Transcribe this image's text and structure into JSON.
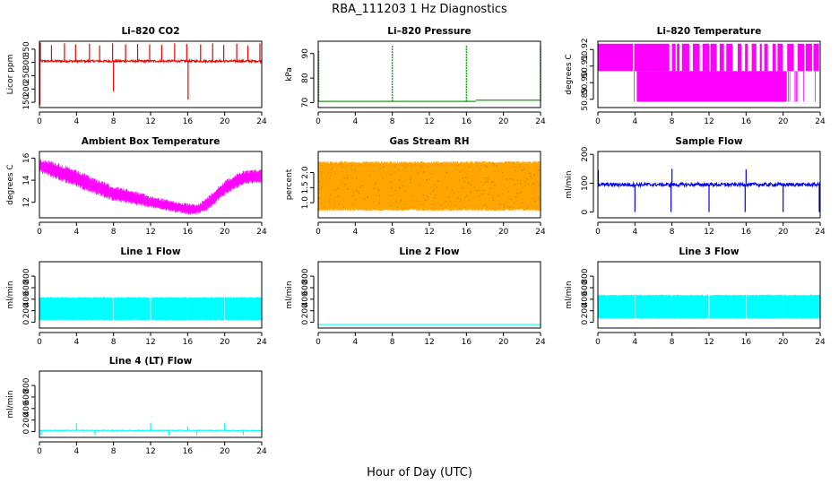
{
  "figure": {
    "title": "RBA_111203  1 Hz Diagnostics",
    "xlabel": "Hour of Day (UTC)"
  },
  "chart_data": [
    {
      "id": "p1",
      "type": "line",
      "title": "Li–820 CO2",
      "ylabel": "Licor ppm",
      "color": "#ee0000",
      "xlim": [
        0,
        24
      ],
      "ylim": [
        130,
        380
      ],
      "xticks": [
        0,
        4,
        8,
        12,
        16,
        20,
        24
      ],
      "yticks": [
        150,
        200,
        250,
        300,
        350
      ],
      "ytick_labels": [
        "150",
        "200",
        "250",
        "300",
        "350"
      ],
      "series": [
        {
          "baseline": 305,
          "noise": 4,
          "spikes": [
            {
              "x": 0.05,
              "y": 140
            },
            {
              "x": 0.1,
              "y": 375
            },
            {
              "x": 1.3,
              "y": 365
            },
            {
              "x": 2.7,
              "y": 372
            },
            {
              "x": 3.9,
              "y": 368
            },
            {
              "x": 5.4,
              "y": 370
            },
            {
              "x": 6.5,
              "y": 364
            },
            {
              "x": 7.9,
              "y": 372
            },
            {
              "x": 8.0,
              "y": 190
            },
            {
              "x": 9.3,
              "y": 368
            },
            {
              "x": 10.6,
              "y": 370
            },
            {
              "x": 11.9,
              "y": 368
            },
            {
              "x": 13.2,
              "y": 366
            },
            {
              "x": 14.6,
              "y": 372
            },
            {
              "x": 15.9,
              "y": 370
            },
            {
              "x": 16.05,
              "y": 160
            },
            {
              "x": 17.4,
              "y": 368
            },
            {
              "x": 18.7,
              "y": 372
            },
            {
              "x": 19.9,
              "y": 366
            },
            {
              "x": 21.3,
              "y": 370
            },
            {
              "x": 22.5,
              "y": 364
            },
            {
              "x": 23.8,
              "y": 372
            }
          ]
        }
      ]
    },
    {
      "id": "p2",
      "type": "line",
      "title": "Li–820 Pressure",
      "ylabel": "kPa",
      "color": "#00aa00",
      "xlim": [
        0,
        24
      ],
      "ylim": [
        68,
        95
      ],
      "xticks": [
        0,
        4,
        8,
        12,
        16,
        20,
        24
      ],
      "yticks": [
        70,
        80,
        90
      ],
      "ytick_labels": [
        "70",
        "80",
        "90"
      ],
      "series": [
        {
          "segments": [
            {
              "x0": 0,
              "x1": 17,
              "y": 70.5
            },
            {
              "x0": 17,
              "x1": 24,
              "y": 71.0
            }
          ],
          "spikes": [
            {
              "x": 0.05,
              "y": 91
            },
            {
              "x": 8.0,
              "y": 93.5
            },
            {
              "x": 16.0,
              "y": 93.5
            },
            {
              "x": 24.0,
              "y": 93.5
            }
          ]
        }
      ]
    },
    {
      "id": "p3",
      "type": "area",
      "title": "Li–820 Temperature",
      "ylabel": "degrees C",
      "color": "#ff00ff",
      "xlim": [
        0,
        24
      ],
      "ylim": [
        50.885,
        50.925
      ],
      "xticks": [
        0,
        4,
        8,
        12,
        16,
        20,
        24
      ],
      "yticks": [
        50.89,
        50.9,
        50.91,
        50.92
      ],
      "ytick_labels": [
        "50.89",
        "50.90",
        "50.91",
        "50.92"
      ],
      "series": [
        {
          "low": 50.8885,
          "high": 50.9235,
          "mid": 50.907
        }
      ]
    },
    {
      "id": "p4",
      "type": "area",
      "title": "Ambient Box Temperature",
      "ylabel": "degrees C",
      "color": "#ff00ff",
      "xlim": [
        0,
        24
      ],
      "ylim": [
        10.6,
        16.6
      ],
      "xticks": [
        0,
        4,
        8,
        12,
        16,
        20,
        24
      ],
      "yticks": [
        12,
        14,
        16
      ],
      "ytick_labels": [
        "12",
        "14",
        "16"
      ],
      "series": [
        {
          "x": [
            0,
            2,
            4,
            6,
            8,
            10,
            12,
            14,
            16,
            17,
            18,
            20,
            22,
            24
          ],
          "low": [
            14.7,
            14.0,
            13.4,
            12.7,
            12.1,
            11.8,
            11.5,
            11.2,
            10.9,
            10.9,
            11.2,
            12.6,
            13.6,
            13.8
          ],
          "high": [
            16.0,
            15.6,
            14.9,
            14.2,
            13.5,
            13.1,
            12.6,
            12.2,
            11.9,
            11.8,
            12.4,
            14.0,
            14.9,
            15.0
          ]
        }
      ]
    },
    {
      "id": "p5",
      "type": "area",
      "title": "Gas Stream RH",
      "ylabel": "percent",
      "color": "#ffa500",
      "xlim": [
        0,
        24
      ],
      "ylim": [
        0.5,
        2.7
      ],
      "xticks": [
        0,
        4,
        8,
        12,
        16,
        20,
        24
      ],
      "yticks": [
        1.0,
        1.5,
        2.0
      ],
      "ytick_labels": [
        "1.0",
        "1.5",
        "2.0"
      ],
      "series": [
        {
          "low": 0.8,
          "high": 2.3
        }
      ]
    },
    {
      "id": "p6",
      "type": "line",
      "title": "Sample Flow",
      "ylabel": "ml/min",
      "color": "#0000ee",
      "xlim": [
        0,
        24
      ],
      "ylim": [
        -20,
        210
      ],
      "xticks": [
        0,
        4,
        8,
        12,
        16,
        20,
        24
      ],
      "yticks": [
        0,
        100,
        200
      ],
      "ytick_labels": [
        "0",
        "100",
        "200"
      ],
      "series": [
        {
          "baseline": 95,
          "noise": 6,
          "spikes": [
            {
              "x": 0.05,
              "y": 145
            },
            {
              "x": 4.0,
              "y": 0
            },
            {
              "x": 7.9,
              "y": 0
            },
            {
              "x": 8.0,
              "y": 150
            },
            {
              "x": 12.0,
              "y": 0
            },
            {
              "x": 15.9,
              "y": 0
            },
            {
              "x": 16.0,
              "y": 148
            },
            {
              "x": 20.0,
              "y": 0
            },
            {
              "x": 23.9,
              "y": 0
            }
          ]
        }
      ]
    },
    {
      "id": "p7",
      "type": "area",
      "title": "Line 1 Flow",
      "ylabel": "ml/min",
      "color": "#00ffff",
      "xlim": [
        0,
        24
      ],
      "ylim": [
        -100,
        1050
      ],
      "xticks": [
        0,
        4,
        8,
        12,
        16,
        20,
        24
      ],
      "yticks": [
        0,
        200,
        400,
        600,
        800
      ],
      "ytick_labels": [
        "0",
        "200",
        "400",
        "600",
        "800"
      ],
      "series": [
        {
          "low": 50,
          "high": 420,
          "gaps": [
            4,
            8,
            12,
            16,
            20
          ]
        }
      ]
    },
    {
      "id": "p8",
      "type": "line",
      "title": "Line 2 Flow",
      "ylabel": "ml/min",
      "color": "#00ffff",
      "xlim": [
        0,
        24
      ],
      "ylim": [
        -100,
        1050
      ],
      "xticks": [
        0,
        4,
        8,
        12,
        16,
        20,
        24
      ],
      "yticks": [
        0,
        200,
        400,
        600,
        800
      ],
      "ytick_labels": [
        "0",
        "200",
        "400",
        "600",
        "800"
      ],
      "series": [
        {
          "baseline": -40
        }
      ]
    },
    {
      "id": "p9",
      "type": "area",
      "title": "Line 3 Flow",
      "ylabel": "ml/min",
      "color": "#00ffff",
      "xlim": [
        0,
        24
      ],
      "ylim": [
        -100,
        1050
      ],
      "xticks": [
        0,
        4,
        8,
        12,
        16,
        20,
        24
      ],
      "yticks": [
        0,
        200,
        400,
        600,
        800
      ],
      "ytick_labels": [
        "0",
        "200",
        "400",
        "600",
        "800"
      ],
      "series": [
        {
          "low": 80,
          "high": 460,
          "gaps": [
            4,
            8,
            12,
            16,
            20
          ]
        }
      ]
    },
    {
      "id": "p10",
      "type": "line",
      "title": "Line 4 (LT) Flow",
      "ylabel": "ml/min",
      "color": "#00ffff",
      "xlim": [
        0,
        24
      ],
      "ylim": [
        -100,
        1050
      ],
      "xticks": [
        0,
        4,
        8,
        12,
        16,
        20,
        24
      ],
      "yticks": [
        0,
        200,
        400,
        600,
        800
      ],
      "ytick_labels": [
        "0",
        "200",
        "400",
        "600",
        "800"
      ],
      "series": [
        {
          "baseline": 20,
          "noise": 6,
          "spikes": [
            {
              "x": 0.2,
              "y": -60
            },
            {
              "x": 4.0,
              "y": 150
            },
            {
              "x": 6.0,
              "y": -60
            },
            {
              "x": 12.0,
              "y": 150
            },
            {
              "x": 14.0,
              "y": -60
            },
            {
              "x": 16.0,
              "y": 90
            },
            {
              "x": 17.0,
              "y": -60
            },
            {
              "x": 20.0,
              "y": 150
            },
            {
              "x": 22.0,
              "y": -60
            },
            {
              "x": 24.0,
              "y": 100
            }
          ]
        }
      ]
    }
  ]
}
